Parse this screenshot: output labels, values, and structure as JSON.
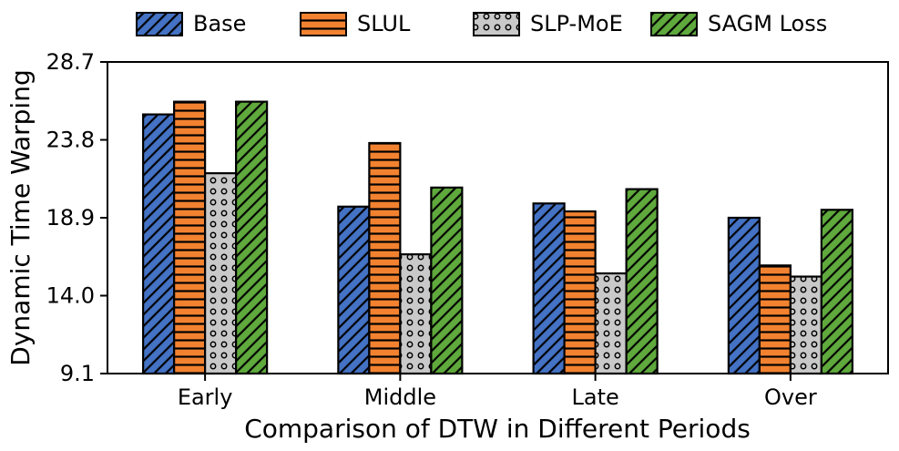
{
  "chart_data": {
    "type": "bar",
    "title": "",
    "xlabel": "Comparison of DTW in Different Periods",
    "ylabel": "Dynamic Time Warping",
    "categories": [
      "Early",
      "Middle",
      "Late",
      "Over"
    ],
    "y_ticks": [
      28.7,
      23.8,
      18.9,
      14.0,
      9.1
    ],
    "ylim": [
      9.1,
      28.7
    ],
    "grid": false,
    "legend_position": "top",
    "axis_color": "#000000",
    "series": [
      {
        "name": "Base",
        "color": "#4472C4",
        "hatch": "diagonal",
        "values": [
          25.4,
          19.6,
          19.8,
          18.9
        ]
      },
      {
        "name": "SLUL",
        "color": "#F28230",
        "hatch": "horizontal",
        "values": [
          26.2,
          23.6,
          19.3,
          15.9
        ]
      },
      {
        "name": "SLP-MoE",
        "color": "#C9C9C9",
        "hatch": "circles",
        "values": [
          21.7,
          16.6,
          15.4,
          15.2
        ]
      },
      {
        "name": "SAGM Loss",
        "color": "#5FA93D",
        "hatch": "diagonal",
        "values": [
          26.2,
          20.8,
          20.7,
          19.4
        ]
      }
    ]
  }
}
